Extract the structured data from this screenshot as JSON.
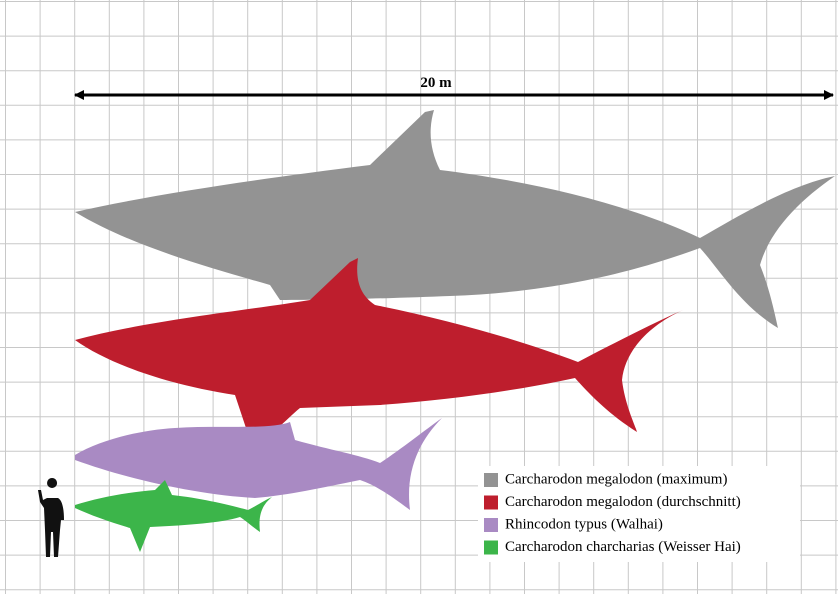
{
  "scale": {
    "label": "20 m"
  },
  "legend": {
    "items": [
      {
        "label": "Carcharodon megalodon (maximum)",
        "color": "#939393"
      },
      {
        "label": "Carcharodon megalodon (durchschnitt)",
        "color": "#be1e2d"
      },
      {
        "label": "Rhincodon typus (Walhai)",
        "color": "#a98ac3"
      },
      {
        "label": "Carcharodon charcharias (Weisser Hai)",
        "color": "#3cb54a"
      }
    ]
  }
}
